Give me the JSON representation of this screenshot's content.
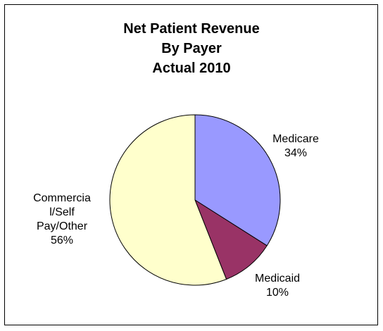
{
  "chart_data": {
    "type": "pie",
    "title_lines": [
      "Net Patient Revenue",
      "By Payer",
      "Actual 2010"
    ],
    "slices": [
      {
        "name": "Medicare",
        "value": 34,
        "label_lines": [
          "Medicare",
          "34%"
        ],
        "color": "#9999FF"
      },
      {
        "name": "Medicaid",
        "value": 10,
        "label_lines": [
          "Medicaid",
          "10%"
        ],
        "color": "#993366"
      },
      {
        "name": "Commercial/Self Pay/Other",
        "value": 56,
        "label_lines": [
          "Commercia",
          "l/Self",
          "Pay/Other",
          "56%"
        ],
        "color": "#FFFFCC"
      }
    ],
    "legend": "none"
  }
}
